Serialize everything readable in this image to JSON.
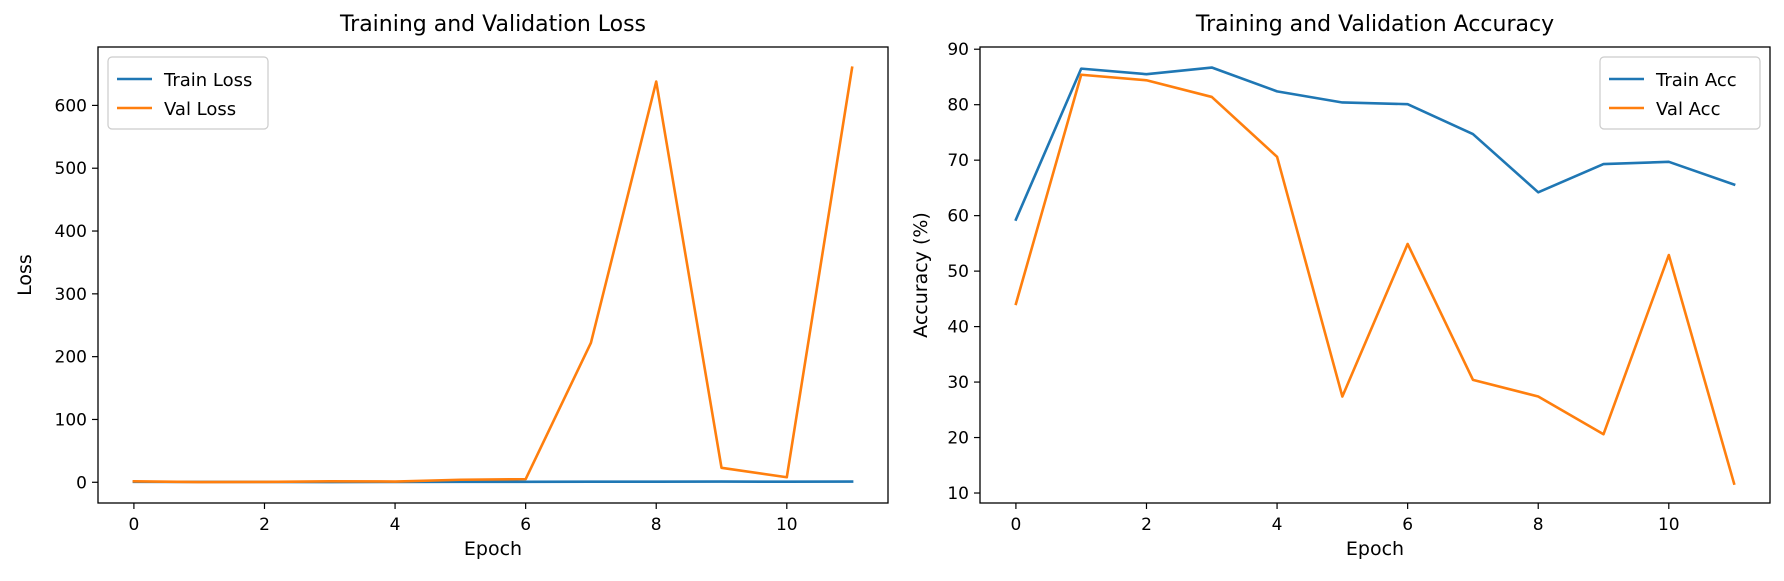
{
  "chart_data": [
    {
      "type": "line",
      "title": "Training and Validation Loss",
      "xlabel": "Epoch",
      "ylabel": "Loss",
      "x": [
        0,
        1,
        2,
        3,
        4,
        5,
        6,
        7,
        8,
        9,
        10,
        11
      ],
      "xlim": [
        -0.55,
        11.55
      ],
      "ylim": [
        -33,
        693
      ],
      "xticks": [
        0,
        2,
        4,
        6,
        8,
        10
      ],
      "yticks": [
        0,
        100,
        200,
        300,
        400,
        500,
        600
      ],
      "grid": false,
      "legend": "upper left",
      "series": [
        {
          "name": "Train Loss",
          "color": "#1f77b4",
          "values": [
            0.7,
            0.5,
            0.5,
            0.4,
            0.6,
            0.7,
            0.8,
            0.9,
            1.0,
            1.1,
            0.9,
            1.2
          ]
        },
        {
          "name": "Val Loss",
          "color": "#ff7f0e",
          "values": [
            1.5,
            0.3,
            0.5,
            1.5,
            1.2,
            4.0,
            5.0,
            222.0,
            638.0,
            23.0,
            8.0,
            660.0
          ]
        }
      ]
    },
    {
      "type": "line",
      "title": "Training and Validation Accuracy",
      "xlabel": "Epoch",
      "ylabel": "Accuracy (%)",
      "x": [
        0,
        1,
        2,
        3,
        4,
        5,
        6,
        7,
        8,
        9,
        10,
        11
      ],
      "xlim": [
        -0.55,
        11.55
      ],
      "ylim": [
        8.2,
        90.4
      ],
      "xticks": [
        0,
        2,
        4,
        6,
        8,
        10
      ],
      "yticks": [
        10,
        20,
        30,
        40,
        50,
        60,
        70,
        80,
        90
      ],
      "grid": false,
      "legend": "upper right",
      "series": [
        {
          "name": "Train Acc",
          "color": "#1f77b4",
          "values": [
            59.3,
            86.5,
            85.5,
            86.7,
            82.4,
            80.4,
            80.1,
            74.7,
            64.2,
            69.3,
            69.7,
            65.6
          ]
        },
        {
          "name": "Val Acc",
          "color": "#ff7f0e",
          "values": [
            44.1,
            85.4,
            84.4,
            81.4,
            70.6,
            27.4,
            54.9,
            30.4,
            27.4,
            20.6,
            52.9,
            11.7
          ]
        }
      ]
    }
  ]
}
